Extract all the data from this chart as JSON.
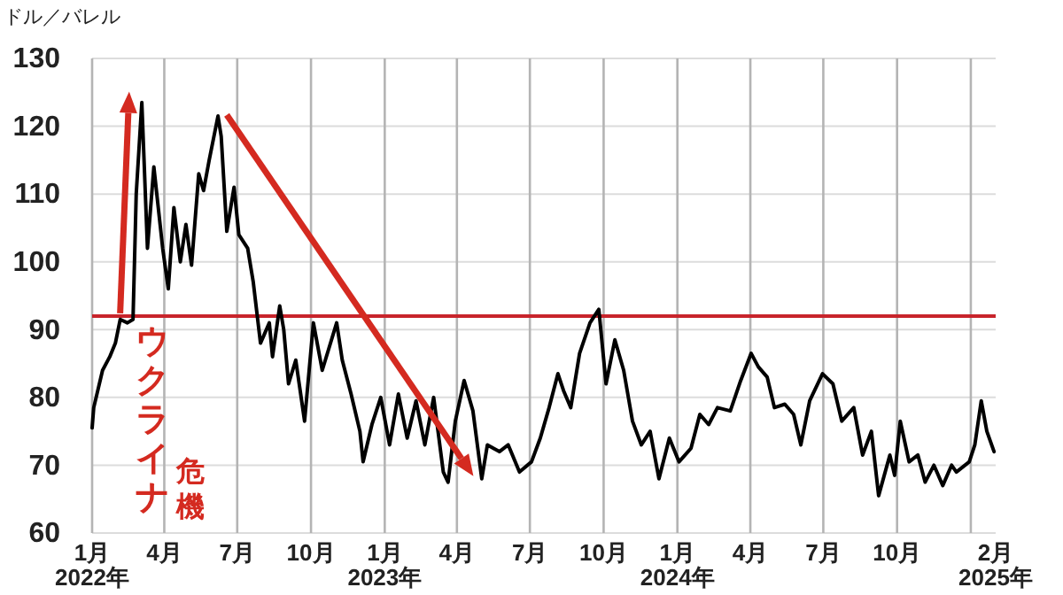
{
  "chart_data": {
    "type": "line",
    "ylabel": "ドル／バレル",
    "xlim": [
      "2022-01-01",
      "2025-02-01"
    ],
    "xticks": [
      {
        "value": "2022-01-01",
        "label": "1月\n2022年"
      },
      {
        "value": "2022-04-01",
        "label": "4月"
      },
      {
        "value": "2022-07-01",
        "label": "7月"
      },
      {
        "value": "2022-10-01",
        "label": "10月"
      },
      {
        "value": "2023-01-01",
        "label": "1月\n2023年"
      },
      {
        "value": "2023-04-01",
        "label": "4月"
      },
      {
        "value": "2023-07-01",
        "label": "7月"
      },
      {
        "value": "2023-10-01",
        "label": "10月"
      },
      {
        "value": "2024-01-01",
        "label": "1月\n2024年"
      },
      {
        "value": "2024-04-01",
        "label": "4月"
      },
      {
        "value": "2024-07-01",
        "label": "7月"
      },
      {
        "value": "2024-10-01",
        "label": "10月"
      },
      {
        "value": "2025-01-01",
        "label": null
      },
      {
        "value": "2025-02-01",
        "label": "2月\n2025年"
      }
    ],
    "ylim": [
      60,
      130
    ],
    "yticks": [
      60,
      70,
      80,
      90,
      100,
      110,
      120,
      130
    ],
    "grid": true,
    "ref_lines": [
      {
        "axis": "y",
        "value": 92,
        "label": null,
        "color": "#c8242b"
      }
    ],
    "annotations": [
      "ウクライナ危機"
    ],
    "series": [
      {
        "color": "#000000",
        "x": [
          "2022-01-01",
          "2022-01-03",
          "2022-01-14",
          "2022-01-23",
          "2022-01-30",
          "2022-02-05",
          "2022-02-14",
          "2022-02-21",
          "2022-02-25",
          "2022-03-04",
          "2022-03-11",
          "2022-03-19",
          "2022-03-30",
          "2022-04-06",
          "2022-04-13",
          "2022-04-21",
          "2022-04-28",
          "2022-05-05",
          "2022-05-14",
          "2022-05-20",
          "2022-05-27",
          "2022-06-07",
          "2022-06-11",
          "2022-06-18",
          "2022-06-27",
          "2022-07-03",
          "2022-07-14",
          "2022-07-21",
          "2022-07-30",
          "2022-08-10",
          "2022-08-14",
          "2022-08-23",
          "2022-08-28",
          "2022-09-03",
          "2022-09-12",
          "2022-09-23",
          "2022-10-04",
          "2022-10-15",
          "2022-11-02",
          "2022-11-09",
          "2022-11-20",
          "2022-12-01",
          "2022-12-05",
          "2022-12-16",
          "2022-12-27",
          "2023-01-07",
          "2023-01-18",
          "2023-01-29",
          "2023-02-09",
          "2023-02-20",
          "2023-03-03",
          "2023-03-15",
          "2023-03-21",
          "2023-03-30",
          "2023-04-10",
          "2023-04-21",
          "2023-05-02",
          "2023-05-09",
          "2023-05-24",
          "2023-06-04",
          "2023-06-18",
          "2023-07-03",
          "2023-07-14",
          "2023-07-25",
          "2023-08-05",
          "2023-08-12",
          "2023-08-21",
          "2023-09-01",
          "2023-09-14",
          "2023-09-25",
          "2023-10-04",
          "2023-10-15",
          "2023-10-26",
          "2023-11-06",
          "2023-11-17",
          "2023-11-28",
          "2023-12-09",
          "2023-12-22",
          "2024-01-03",
          "2024-01-18",
          "2024-01-29",
          "2024-02-09",
          "2024-02-20",
          "2024-03-07",
          "2024-03-20",
          "2024-04-02",
          "2024-04-11",
          "2024-04-22",
          "2024-05-01",
          "2024-05-14",
          "2024-05-25",
          "2024-06-03",
          "2024-06-14",
          "2024-06-30",
          "2024-07-13",
          "2024-07-24",
          "2024-08-08",
          "2024-08-19",
          "2024-08-30",
          "2024-09-08",
          "2024-09-22",
          "2024-09-28",
          "2024-10-05",
          "2024-10-16",
          "2024-10-27",
          "2024-11-05",
          "2024-11-16",
          "2024-11-27",
          "2024-12-08",
          "2024-12-14",
          "2024-12-30",
          "2025-01-06",
          "2025-01-14",
          "2025-01-21",
          "2025-01-30"
        ],
        "values": [
          75.5,
          78.5,
          84,
          86,
          88,
          91.5,
          91,
          91.5,
          110,
          123.5,
          102,
          114,
          102,
          96,
          108,
          100,
          105.5,
          99.5,
          113,
          110.5,
          115,
          121.5,
          118.5,
          104.5,
          111,
          104,
          102,
          97,
          88,
          91,
          86,
          93.5,
          90,
          82,
          85.5,
          76.5,
          91,
          84,
          91,
          85.5,
          80.5,
          75,
          70.5,
          76,
          80,
          73,
          80.5,
          74,
          79.5,
          73,
          80,
          69,
          67.5,
          76.5,
          82.5,
          78,
          68,
          73,
          72,
          73,
          69,
          70.5,
          74,
          78.5,
          83.5,
          81,
          78.5,
          86.5,
          91,
          93,
          82,
          88.5,
          84,
          76.5,
          73,
          75,
          68,
          74,
          70.5,
          72.5,
          77.5,
          76,
          78.5,
          78,
          82.5,
          86.5,
          84.5,
          83,
          78.5,
          79,
          77.5,
          73,
          79.5,
          83.5,
          82,
          76.5,
          78.5,
          71.5,
          75,
          65.5,
          71.5,
          68.5,
          76.5,
          70.5,
          71.5,
          67.5,
          70,
          67,
          70,
          69,
          70.5,
          73,
          79.5,
          75,
          72
        ]
      }
    ]
  }
}
